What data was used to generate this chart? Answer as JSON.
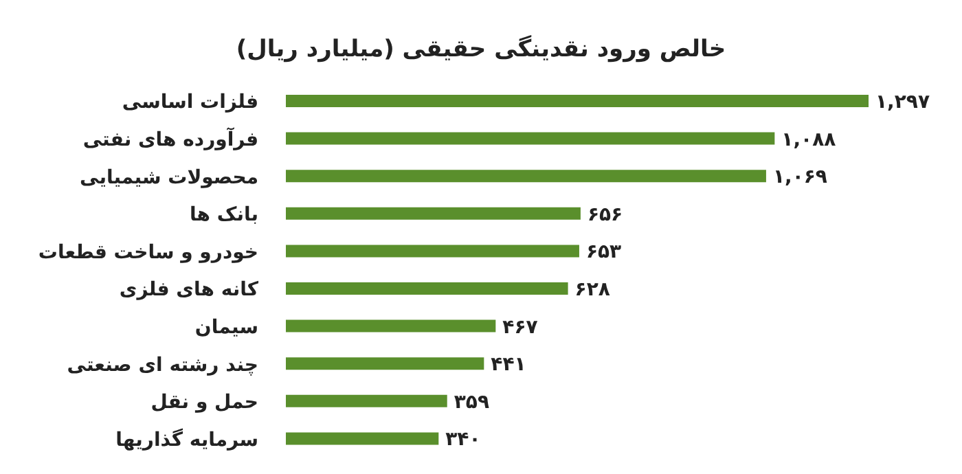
{
  "chart_data": {
    "type": "bar",
    "orientation": "horizontal",
    "title": "خالص ورود نقدینگی حقیقی (میلیارد ریال)",
    "categories": [
      "فلزات اساسی",
      "فرآورده های نفتی",
      "محصولات شیمیایی",
      "بانک ها",
      "خودرو و ساخت قطعات",
      "کانه های فلزی",
      "سیمان",
      "چند رشته ای صنعتی",
      "حمل و نقل",
      "سرمایه گذاریها"
    ],
    "values": [
      1297,
      1088,
      1069,
      656,
      653,
      628,
      467,
      441,
      359,
      340
    ],
    "value_labels": [
      "۱,۲۹۷",
      "۱,۰۸۸",
      "۱,۰۶۹",
      "۶۵۶",
      "۶۵۳",
      "۶۲۸",
      "۴۶۷",
      "۴۴۱",
      "۳۵۹",
      "۳۴۰"
    ],
    "color": "#5a8f2c",
    "grid": false,
    "legend": false
  }
}
